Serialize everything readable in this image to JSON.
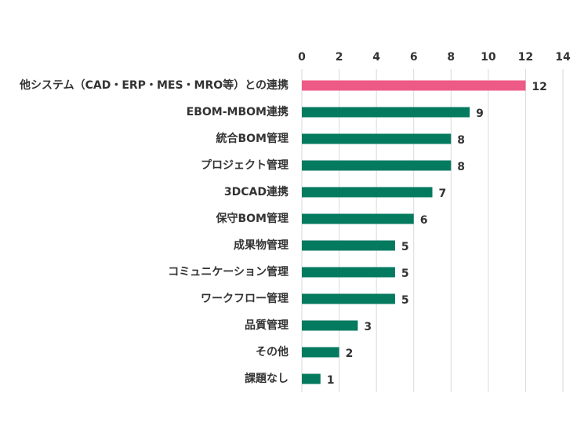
{
  "chart_data": {
    "type": "bar",
    "orientation": "horizontal",
    "categories": [
      "他システム（CAD・ERP・MES・MRO等）との連携",
      "EBOM-MBOM連携",
      "統合BOM管理",
      "プロジェクト管理",
      "3DCAD連携",
      "保守BOM管理",
      "成果物管理",
      "コミュニケーション管理",
      "ワークフロー管理",
      "品質管理",
      "その他",
      "課題なし"
    ],
    "values": [
      12,
      9,
      8,
      8,
      7,
      6,
      5,
      5,
      5,
      3,
      2,
      1
    ],
    "colors": [
      "#ee5a86",
      "#047a5f",
      "#047a5f",
      "#047a5f",
      "#047a5f",
      "#047a5f",
      "#047a5f",
      "#047a5f",
      "#047a5f",
      "#047a5f",
      "#047a5f",
      "#047a5f"
    ],
    "xlim": [
      0,
      14
    ],
    "xticks": [
      0,
      2,
      4,
      6,
      8,
      10,
      12,
      14
    ],
    "grid": true
  }
}
